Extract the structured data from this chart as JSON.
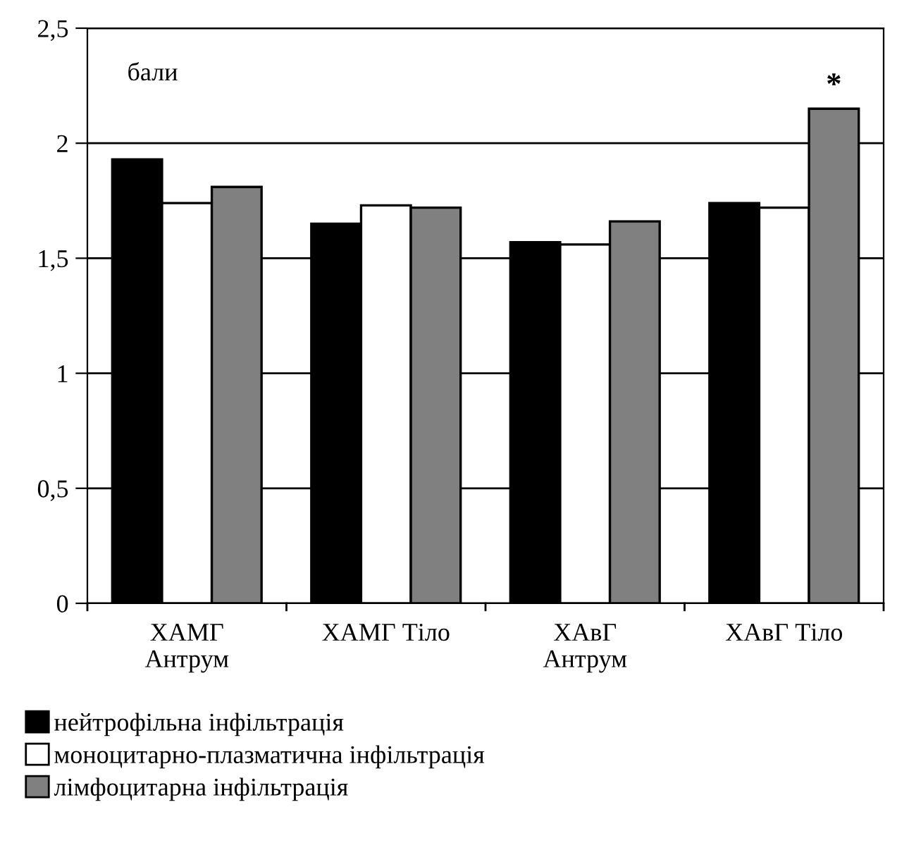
{
  "chart_data": {
    "type": "bar",
    "categories": [
      "ХАМГ\nАнтрум",
      "ХАМГ Тіло",
      "ХАвГ\nАнтрум",
      "ХАвГ Тіло"
    ],
    "series": [
      {
        "name": "нейтрофільна інфільтрація",
        "color": "#000000",
        "values": [
          1.93,
          1.65,
          1.57,
          1.74
        ]
      },
      {
        "name": "моноцитарно-плазматична інфільтрація",
        "color": "#ffffff",
        "values": [
          1.74,
          1.73,
          1.56,
          1.72
        ]
      },
      {
        "name": "лімфоцитарна інфільтрація",
        "color": "#808080",
        "values": [
          1.81,
          1.72,
          1.66,
          2.15
        ]
      }
    ],
    "ylim": [
      0,
      2.5
    ],
    "yticks": [
      {
        "value": 0,
        "label": "0"
      },
      {
        "value": 0.5,
        "label": "0,5"
      },
      {
        "value": 1,
        "label": "1"
      },
      {
        "value": 1.5,
        "label": "1,5"
      },
      {
        "value": 2,
        "label": "2"
      },
      {
        "value": 2.5,
        "label": "2,5"
      }
    ],
    "grid": "y",
    "legend": "bottom left",
    "annotations": [
      "бали",
      "*"
    ]
  }
}
